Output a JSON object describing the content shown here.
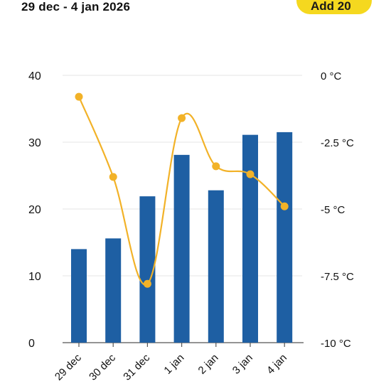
{
  "header": {
    "date_range": "29 dec - 4 jan 2026",
    "button_label": "Add 20"
  },
  "chart_data": {
    "type": "bar",
    "categories": [
      "29 dec",
      "30 dec",
      "31 dec",
      "1 jan",
      "2 jan",
      "3 jan",
      "4 jan"
    ],
    "series": [
      {
        "values": [
          14,
          15.6,
          21.9,
          28.1,
          22.8,
          31.1,
          31.5
        ],
        "color": "#1e5fa3",
        "axis": "left",
        "kind": "bar"
      },
      {
        "values": [
          -0.8,
          -3.8,
          -7.8,
          -1.6,
          -3.4,
          -3.7,
          -4.9
        ],
        "color": "#f2b228",
        "axis": "right",
        "kind": "line"
      }
    ],
    "y_left": {
      "ylim": [
        0,
        40
      ],
      "ticks": [
        0,
        10,
        20,
        30,
        40
      ]
    },
    "y_right": {
      "ylim": [
        -10,
        0
      ],
      "ticks": [
        "-10 °C",
        "-7.5 °C",
        "-5 °C",
        "-2.5 °C",
        "0 °C"
      ]
    },
    "xlabel": "",
    "ylabel": "",
    "grid": true
  }
}
